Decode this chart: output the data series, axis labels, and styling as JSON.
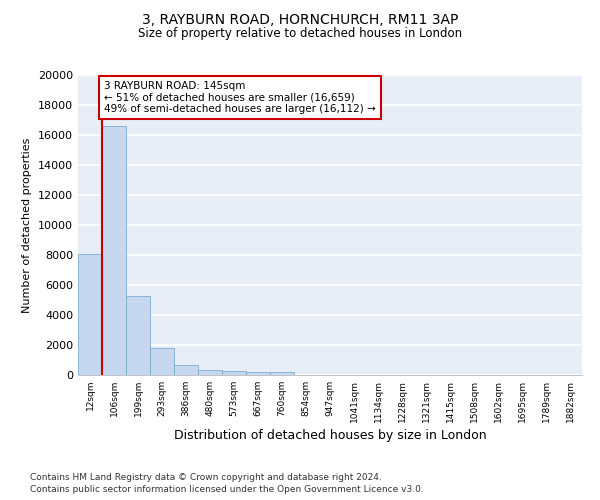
{
  "title1": "3, RAYBURN ROAD, HORNCHURCH, RM11 3AP",
  "title2": "Size of property relative to detached houses in London",
  "xlabel": "Distribution of detached houses by size in London",
  "ylabel": "Number of detached properties",
  "categories": [
    "12sqm",
    "106sqm",
    "199sqm",
    "293sqm",
    "386sqm",
    "480sqm",
    "573sqm",
    "667sqm",
    "760sqm",
    "854sqm",
    "947sqm",
    "1041sqm",
    "1134sqm",
    "1228sqm",
    "1321sqm",
    "1415sqm",
    "1508sqm",
    "1602sqm",
    "1695sqm",
    "1789sqm",
    "1882sqm"
  ],
  "values": [
    8100,
    16600,
    5300,
    1800,
    700,
    350,
    270,
    190,
    180,
    0,
    0,
    0,
    0,
    0,
    0,
    0,
    0,
    0,
    0,
    0,
    0
  ],
  "bar_color": "#c5d8f0",
  "bar_edgecolor": "#7aaed4",
  "vline_color": "#cc0000",
  "annotation_text": "3 RAYBURN ROAD: 145sqm\n← 51% of detached houses are smaller (16,659)\n49% of semi-detached houses are larger (16,112) →",
  "annotation_box_color": "#ffffff",
  "annotation_box_edgecolor": "#cc0000",
  "ylim": [
    0,
    20000
  ],
  "yticks": [
    0,
    2000,
    4000,
    6000,
    8000,
    10000,
    12000,
    14000,
    16000,
    18000,
    20000
  ],
  "bg_color": "#e8eef8",
  "grid_color": "#ffffff",
  "footer1": "Contains HM Land Registry data © Crown copyright and database right 2024.",
  "footer2": "Contains public sector information licensed under the Open Government Licence v3.0."
}
